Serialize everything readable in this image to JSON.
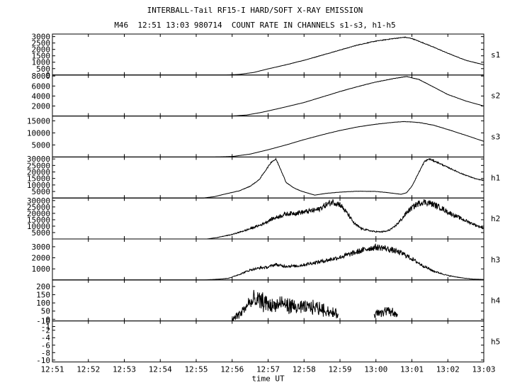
{
  "title": "INTERBALL-Tail RF15-I HARD/SOFT X-RAY EMISSION",
  "subtitle": "M46  12:51 13:03 980714  COUNT RATE IN CHANNELS s1-s3, h1-h5",
  "chart_data": {
    "type": "line",
    "xlabel": "time UT",
    "x_ticks": [
      "12:51",
      "12:52",
      "12:53",
      "12:54",
      "12:55",
      "12:56",
      "12:57",
      "12:58",
      "12:59",
      "13:00",
      "13:01",
      "13:02",
      "13:03"
    ],
    "xlim_minutes": [
      0,
      12
    ],
    "panels": [
      {
        "name": "s1",
        "ylim": [
          0,
          3200
        ],
        "y_ticks": [
          "3000",
          "2500",
          "2000",
          "1500",
          "1000",
          "500",
          "0"
        ],
        "y_tick_values": [
          3000,
          2500,
          2000,
          1500,
          1000,
          500,
          0
        ],
        "points": [
          [
            0,
            0
          ],
          [
            4.8,
            0
          ],
          [
            5.2,
            50
          ],
          [
            5.6,
            200
          ],
          [
            6.0,
            480
          ],
          [
            6.5,
            800
          ],
          [
            7.0,
            1150
          ],
          [
            7.5,
            1550
          ],
          [
            8.0,
            1950
          ],
          [
            8.5,
            2350
          ],
          [
            9.0,
            2650
          ],
          [
            9.5,
            2850
          ],
          [
            9.8,
            2950
          ],
          [
            10.0,
            2850
          ],
          [
            10.5,
            2300
          ],
          [
            11.0,
            1700
          ],
          [
            11.5,
            1150
          ],
          [
            12.0,
            800
          ]
        ],
        "noise": 0.01
      },
      {
        "name": "s2",
        "ylim": [
          0,
          8200
        ],
        "y_ticks": [
          "8000",
          "6000",
          "4000",
          "2000"
        ],
        "y_tick_values": [
          8000,
          6000,
          4000,
          2000
        ],
        "points": [
          [
            0,
            0
          ],
          [
            5.0,
            0
          ],
          [
            5.4,
            200
          ],
          [
            5.8,
            700
          ],
          [
            6.3,
            1500
          ],
          [
            7.0,
            2700
          ],
          [
            7.5,
            3800
          ],
          [
            8.0,
            4900
          ],
          [
            8.5,
            5900
          ],
          [
            9.0,
            6800
          ],
          [
            9.5,
            7500
          ],
          [
            9.85,
            7900
          ],
          [
            10.2,
            7300
          ],
          [
            10.6,
            5800
          ],
          [
            11.0,
            4300
          ],
          [
            11.5,
            3000
          ],
          [
            12.0,
            2000
          ]
        ],
        "noise": 0.005
      },
      {
        "name": "s3",
        "ylim": [
          0,
          17000
        ],
        "y_ticks": [
          "15000",
          "10000",
          "5000"
        ],
        "y_tick_values": [
          15000,
          10000,
          5000
        ],
        "points": [
          [
            0,
            0
          ],
          [
            4.5,
            0
          ],
          [
            5.0,
            200
          ],
          [
            5.5,
            1200
          ],
          [
            6.0,
            3000
          ],
          [
            6.5,
            5000
          ],
          [
            7.0,
            7200
          ],
          [
            7.5,
            9200
          ],
          [
            8.0,
            11000
          ],
          [
            8.5,
            12500
          ],
          [
            9.0,
            13600
          ],
          [
            9.5,
            14400
          ],
          [
            9.8,
            14700
          ],
          [
            10.2,
            14300
          ],
          [
            10.6,
            13200
          ],
          [
            11.0,
            11400
          ],
          [
            11.5,
            9000
          ],
          [
            12.0,
            6500
          ]
        ],
        "noise": 0.004
      },
      {
        "name": "h1",
        "ylim": [
          0,
          31500
        ],
        "y_ticks": [
          "30000",
          "25000",
          "20000",
          "15000",
          "10000",
          "5000"
        ],
        "y_tick_values": [
          30000,
          25000,
          20000,
          15000,
          10000,
          5000
        ],
        "points": [
          [
            0,
            0
          ],
          [
            4.2,
            0
          ],
          [
            4.5,
            1000
          ],
          [
            4.8,
            3000
          ],
          [
            5.2,
            5500
          ],
          [
            5.5,
            9000
          ],
          [
            5.75,
            14000
          ],
          [
            5.95,
            22000
          ],
          [
            6.1,
            28000
          ],
          [
            6.22,
            29800
          ],
          [
            6.35,
            22000
          ],
          [
            6.5,
            12000
          ],
          [
            6.7,
            8000
          ],
          [
            6.9,
            5500
          ],
          [
            7.1,
            3800
          ],
          [
            7.3,
            2200
          ],
          [
            7.6,
            3500
          ],
          [
            8.0,
            4500
          ],
          [
            8.5,
            5200
          ],
          [
            9.0,
            5000
          ],
          [
            9.3,
            4200
          ],
          [
            9.6,
            3200
          ],
          [
            9.7,
            2800
          ],
          [
            9.85,
            4000
          ],
          [
            10.0,
            9000
          ],
          [
            10.2,
            20000
          ],
          [
            10.35,
            28000
          ],
          [
            10.48,
            30000
          ],
          [
            10.7,
            27500
          ],
          [
            11.0,
            23500
          ],
          [
            11.4,
            18500
          ],
          [
            11.8,
            14500
          ],
          [
            12.0,
            13500
          ]
        ],
        "noise": 0.02
      },
      {
        "name": "h2",
        "ylim": [
          0,
          32000
        ],
        "y_ticks": [
          "30000",
          "25000",
          "20000",
          "15000",
          "10000",
          "5000"
        ],
        "y_tick_values": [
          30000,
          25000,
          20000,
          15000,
          10000,
          5000
        ],
        "points": [
          [
            0,
            0
          ],
          [
            4.3,
            0
          ],
          [
            4.6,
            1200
          ],
          [
            5.0,
            3500
          ],
          [
            5.4,
            7000
          ],
          [
            5.8,
            11000
          ],
          [
            6.1,
            15500
          ],
          [
            6.5,
            19500
          ],
          [
            7.0,
            21000
          ],
          [
            7.4,
            23000
          ],
          [
            7.6,
            26500
          ],
          [
            7.8,
            29000
          ],
          [
            8.0,
            27000
          ],
          [
            8.2,
            20000
          ],
          [
            8.4,
            12000
          ],
          [
            8.6,
            8000
          ],
          [
            8.9,
            6000
          ],
          [
            9.1,
            5500
          ],
          [
            9.3,
            6000
          ],
          [
            9.5,
            9000
          ],
          [
            9.7,
            15000
          ],
          [
            9.9,
            22000
          ],
          [
            10.1,
            26500
          ],
          [
            10.3,
            29000
          ],
          [
            10.5,
            28000
          ],
          [
            10.8,
            24500
          ],
          [
            11.0,
            21000
          ],
          [
            11.4,
            15500
          ],
          [
            11.8,
            10500
          ],
          [
            12.0,
            8500
          ]
        ],
        "noise": 0.09
      },
      {
        "name": "h3",
        "ylim": [
          0,
          3700
        ],
        "y_ticks": [
          "3000",
          "2000",
          "1000"
        ],
        "y_tick_values": [
          3000,
          2000,
          1000
        ],
        "points": [
          [
            0,
            0
          ],
          [
            4.2,
            0
          ],
          [
            4.5,
            50
          ],
          [
            4.9,
            150
          ],
          [
            5.2,
            500
          ],
          [
            5.5,
            900
          ],
          [
            5.8,
            1100
          ],
          [
            6.0,
            1150
          ],
          [
            6.2,
            1400
          ],
          [
            6.4,
            1250
          ],
          [
            6.8,
            1250
          ],
          [
            7.2,
            1500
          ],
          [
            7.6,
            1750
          ],
          [
            8.0,
            2050
          ],
          [
            8.4,
            2450
          ],
          [
            8.8,
            2850
          ],
          [
            9.0,
            2950
          ],
          [
            9.2,
            2900
          ],
          [
            9.5,
            2650
          ],
          [
            9.8,
            2300
          ],
          [
            10.0,
            1900
          ],
          [
            10.3,
            1300
          ],
          [
            10.6,
            800
          ],
          [
            11.0,
            400
          ],
          [
            11.4,
            180
          ],
          [
            11.7,
            80
          ],
          [
            12.0,
            40
          ]
        ],
        "noise": 0.1
      },
      {
        "name": "h4",
        "ylim": [
          -10,
          240
        ],
        "y_ticks": [
          "200",
          "150",
          "100",
          "50",
          "0",
          "-10"
        ],
        "y_tick_values": [
          200,
          150,
          100,
          50,
          0,
          -10
        ],
        "segments": [
          [
            [
              5.0,
              0
            ],
            [
              5.25,
              40
            ],
            [
              5.45,
              95
            ],
            [
              5.65,
              115
            ],
            [
              5.9,
              105
            ],
            [
              6.1,
              80
            ],
            [
              6.4,
              95
            ],
            [
              6.7,
              75
            ],
            [
              6.9,
              70
            ],
            [
              7.2,
              75
            ],
            [
              7.5,
              65
            ],
            [
              7.7,
              45
            ],
            [
              7.95,
              30
            ]
          ],
          [
            [
              8.95,
              20
            ],
            [
              9.1,
              45
            ],
            [
              9.3,
              50
            ],
            [
              9.5,
              35
            ],
            [
              9.6,
              20
            ]
          ]
        ],
        "noise": 0.45
      },
      {
        "name": "h5",
        "ylim": [
          -10.5,
          0.5
        ],
        "y_ticks": [
          "-1",
          "-2",
          "-4",
          "-6",
          "-8",
          "-10"
        ],
        "y_tick_values": [
          -1,
          -2,
          -4,
          -6,
          -8,
          -10
        ],
        "points": [],
        "noise": 0
      }
    ]
  }
}
